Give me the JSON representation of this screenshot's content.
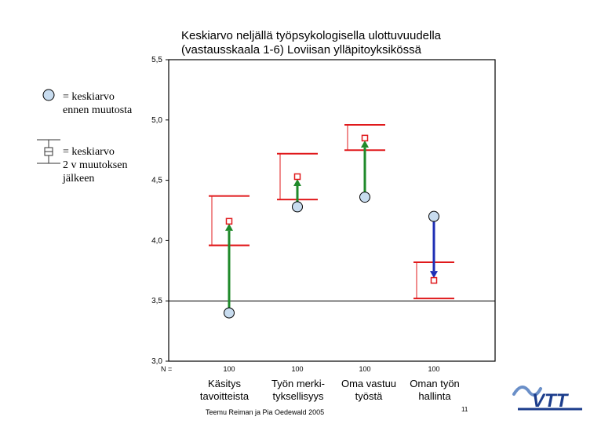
{
  "title_lines": [
    "Keskiarvo neljällä työpsykologisella ulottuvuudella",
    "(vastausskaala 1-6) Loviisan ylläpitoyksikössä"
  ],
  "legend": {
    "before": [
      "= keskiarvo",
      "ennen muutosta"
    ],
    "after": [
      "= keskiarvo",
      "2 v muutoksen",
      "jälkeen"
    ]
  },
  "chart_data": {
    "type": "dot-plot with error bars",
    "ylim": [
      3.0,
      5.5
    ],
    "yticks": [
      "3,0",
      "3,5",
      "4,0",
      "4,5",
      "5,0",
      "5,5"
    ],
    "yticks_values": [
      3.0,
      3.5,
      4.0,
      4.5,
      5.0,
      5.5
    ],
    "reference_line": 3.5,
    "n_label": "N =",
    "categories": [
      {
        "lines": [
          "Käsitys",
          "tavoitteista"
        ],
        "n": "100",
        "before": 3.4,
        "after": 4.16,
        "err_low": 3.96,
        "err_high": 4.37,
        "direction": "up"
      },
      {
        "lines": [
          "Työn merki-",
          "tyksellisyys"
        ],
        "n": "100",
        "before": 4.28,
        "after": 4.53,
        "err_low": 4.34,
        "err_high": 4.72,
        "direction": "up"
      },
      {
        "lines": [
          "Oma vastuu",
          "työstä"
        ],
        "n": "100",
        "before": 4.36,
        "after": 4.85,
        "err_low": 4.75,
        "err_high": 4.96,
        "direction": "up"
      },
      {
        "lines": [
          "Oman työn",
          "hallinta"
        ],
        "n": "100",
        "before": 4.2,
        "after": 3.67,
        "err_low": 3.52,
        "err_high": 3.82,
        "direction": "down"
      }
    ],
    "colors": {
      "before_fill": "#c8dcef",
      "after": "#e0191b",
      "up": "#1f8a2a",
      "down": "#1f2fb5"
    }
  },
  "credit": "Teemu Reiman ja Pia Oedewald 2005",
  "page_number": "11",
  "logo_text": "VTT"
}
